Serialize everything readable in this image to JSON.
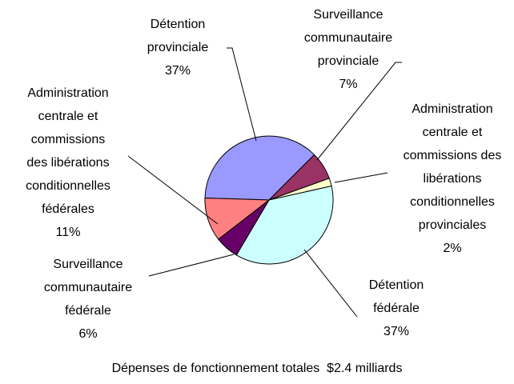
{
  "chart_data": {
    "type": "pie",
    "categories": [
      "Détention\nprovinciale",
      "Surveillance\ncommunautaire\nprovinciale",
      "Administration\ncentrale et\ncommissions des\nlibérations\nconditionnelles\nprovinciales",
      "Détention\nfédérale",
      "Surveillance\ncommunautaire\nfédérale",
      "Administration\ncentrale et\ncommissions\ndes libérations\nconditionnelles\nfédérales"
    ],
    "values": [
      37,
      7,
      2,
      37,
      6,
      11
    ],
    "value_labels": [
      "37%",
      "7%",
      "2%",
      "37%",
      "6%",
      "11%"
    ],
    "colors": [
      "#9999ff",
      "#993366",
      "#ffffcc",
      "#ccffff",
      "#660066",
      "#ff8080"
    ],
    "caption": "Dépenses de fonctionnement totales  $2.4 milliards"
  }
}
